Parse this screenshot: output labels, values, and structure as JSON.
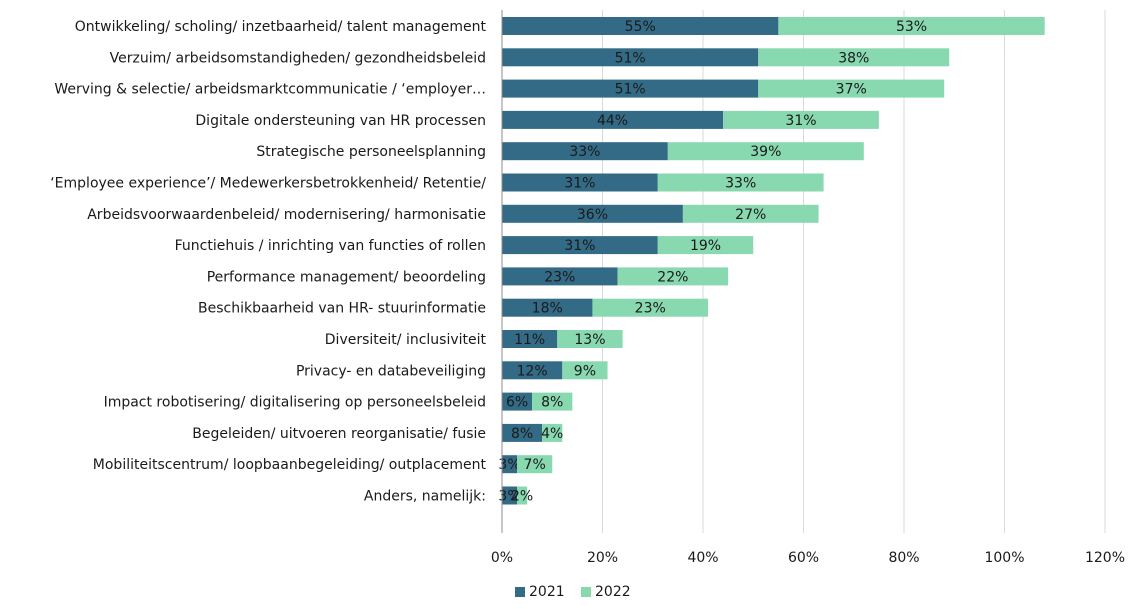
{
  "chart_data": {
    "type": "bar",
    "orientation": "horizontal",
    "stacked": true,
    "categories": [
      "Ontwikkeling/ scholing/ inzetbaarheid/ talent management",
      "Verzuim/ arbeidsomstandigheden/ gezondheidsbeleid",
      "Werving & selectie/ arbeidsmarktcommunicatie / ‘employer…",
      "Digitale ondersteuning van HR processen",
      "Strategische personeelsplanning",
      "‘Employee experience’/ Medewerkersbetrokkenheid/ Retentie/",
      "Arbeidsvoorwaardenbeleid/ modernisering/ harmonisatie",
      "Functiehuis / inrichting van functies of rollen",
      "Performance management/ beoordeling",
      "Beschikbaarheid van HR- stuurinformatie",
      "Diversiteit/ inclusiviteit",
      "Privacy- en databeveiliging",
      "Impact robotisering/ digitalisering op personeelsbeleid",
      "Begeleiden/ uitvoeren reorganisatie/ fusie",
      "Mobiliteitscentrum/ loopbaanbegeleiding/ outplacement",
      "Anders, namelijk:"
    ],
    "series": [
      {
        "name": "2021",
        "color": "#336b87",
        "values": [
          55,
          51,
          51,
          44,
          33,
          31,
          36,
          31,
          23,
          18,
          11,
          12,
          6,
          8,
          3,
          3
        ]
      },
      {
        "name": "2022",
        "color": "#88d8b0",
        "values": [
          53,
          38,
          37,
          31,
          39,
          33,
          27,
          19,
          22,
          23,
          13,
          9,
          8,
          4,
          7,
          2
        ]
      }
    ],
    "xlim": [
      0,
      120
    ],
    "xticks": [
      "0%",
      "20%",
      "40%",
      "60%",
      "80%",
      "100%",
      "120%"
    ],
    "grid": true,
    "legend": "bottom"
  }
}
